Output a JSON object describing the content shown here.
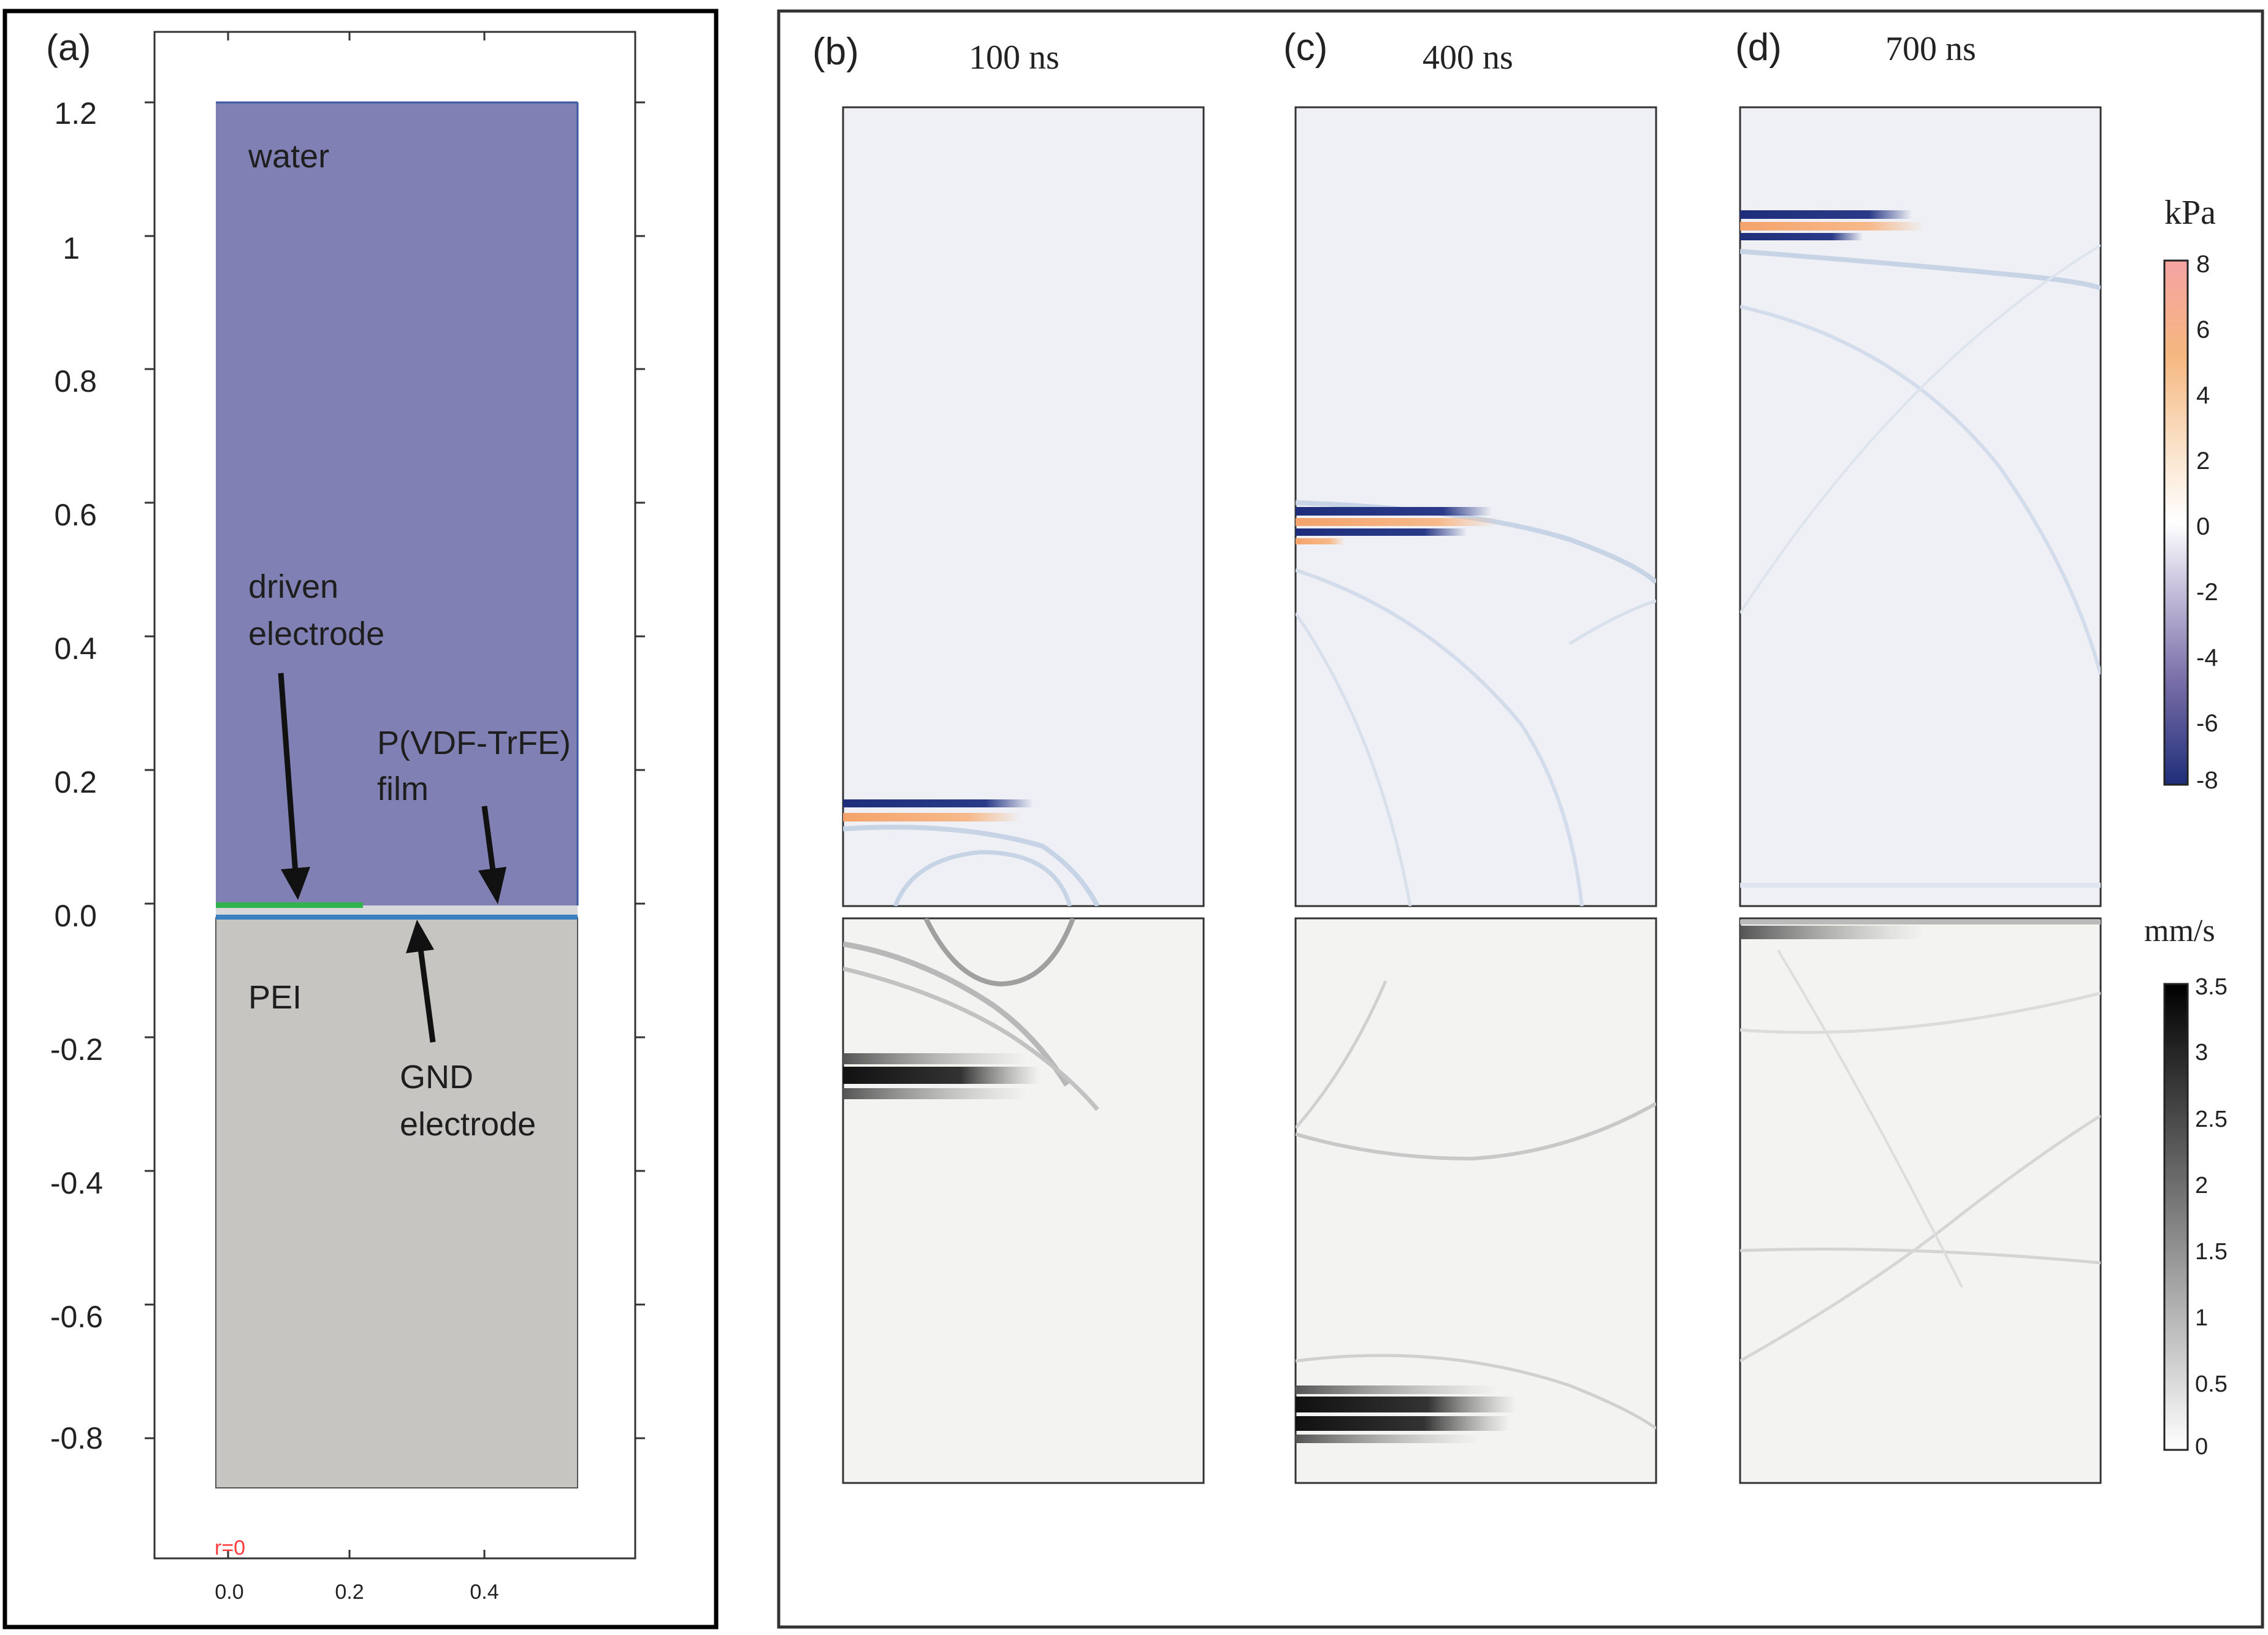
{
  "panel_a": {
    "label": "(a)",
    "y_ticks": [
      "1.2",
      "1",
      "0.8",
      "0.6",
      "0.4",
      "0.2",
      "0.0",
      "-0.2",
      "-0.4",
      "-0.6",
      "-0.8"
    ],
    "x_ticks": [
      "0.0",
      "0.2",
      "0.4"
    ],
    "axis_origin_label": "r=0",
    "regions": {
      "water": "water",
      "pei": "PEI"
    },
    "annotations": {
      "driven_line1": "driven",
      "driven_line2": "electrode",
      "film_line1": "P(VDF-TrFE)",
      "film_line2": "film",
      "gnd_line1": "GND",
      "gnd_line2": "electrode"
    },
    "colors": {
      "water": "#8080b4",
      "pei": "#c6c5c2",
      "driven_electrode": "#2fb34a",
      "gnd_electrode": "#3a7fc0",
      "origin_label": "#ff3b3b"
    }
  },
  "snapshots": [
    {
      "label": "(b)",
      "time": "100 ns"
    },
    {
      "label": "(c)",
      "time": "400 ns"
    },
    {
      "label": "(d)",
      "time": "700 ns"
    }
  ],
  "colorbar_pressure": {
    "unit": "kPa",
    "ticks": [
      "8",
      "6",
      "4",
      "2",
      "0",
      "-2",
      "-4",
      "-6",
      "-8"
    ],
    "colors": {
      "max": "#f5a3a3",
      "mid_pos": "#f5b77f",
      "zero": "#ffffff",
      "mid_neg": "#8e7fb4",
      "min": "#1f2e7a"
    }
  },
  "colorbar_velocity": {
    "unit": "mm/s",
    "ticks": [
      "3.5",
      "3",
      "2.5",
      "2",
      "1.5",
      "1",
      "0.5",
      "0"
    ],
    "colors": {
      "max": "#000000",
      "min": "#ffffff"
    }
  }
}
